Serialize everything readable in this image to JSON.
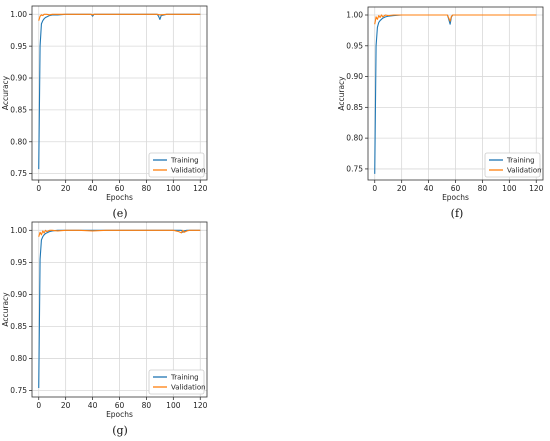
{
  "chart_data": [
    {
      "type": "line",
      "panel_label": "(e)",
      "xlabel": "Epochs",
      "ylabel": "Accuracy",
      "xlim": [
        -5,
        125
      ],
      "ylim": [
        0.74,
        1.013
      ],
      "xticks": [
        0,
        20,
        40,
        60,
        80,
        100,
        120
      ],
      "yticks": [
        0.75,
        0.8,
        0.85,
        0.9,
        0.95,
        1.0
      ],
      "ytick_labels": [
        "0.75",
        "0.80",
        "0.85",
        "0.90",
        "0.95",
        "1.00"
      ],
      "grid": true,
      "legend": "lower-right",
      "series": [
        {
          "name": "Training",
          "color": "#1f77b4",
          "x": [
            0,
            1,
            2,
            3,
            4,
            5,
            6,
            8,
            10,
            14,
            20,
            30,
            39,
            40,
            41,
            50,
            60,
            70,
            80,
            88,
            89,
            90,
            91,
            95,
            100,
            110,
            120
          ],
          "y": [
            0.757,
            0.95,
            0.985,
            0.99,
            0.993,
            0.995,
            0.996,
            0.998,
            0.999,
            0.999,
            1.0,
            1.0,
            1.0,
            0.997,
            1.0,
            1.0,
            1.0,
            1.0,
            1.0,
            1.0,
            0.997,
            0.992,
            0.998,
            1.0,
            1.0,
            1.0,
            1.0
          ]
        },
        {
          "name": "Validation",
          "color": "#ff7f0e",
          "x": [
            0,
            1,
            2,
            3,
            4,
            6,
            8,
            10,
            14,
            20,
            30,
            39,
            40,
            41,
            50,
            60,
            70,
            80,
            88,
            90,
            95,
            100,
            110,
            120
          ],
          "y": [
            0.99,
            0.997,
            0.999,
            0.998,
            1.0,
            1.0,
            0.999,
            1.0,
            1.0,
            1.0,
            1.0,
            1.0,
            0.999,
            1.0,
            1.0,
            1.0,
            1.0,
            1.0,
            1.0,
            0.999,
            1.0,
            1.0,
            1.0,
            1.0
          ]
        }
      ]
    },
    {
      "type": "line",
      "panel_label": "(f)",
      "xlabel": "Epochs",
      "ylabel": "Accuracy",
      "xlim": [
        -5,
        125
      ],
      "ylim": [
        0.732,
        1.013
      ],
      "xticks": [
        0,
        20,
        40,
        60,
        80,
        100,
        120
      ],
      "yticks": [
        0.75,
        0.8,
        0.85,
        0.9,
        0.95,
        1.0
      ],
      "ytick_labels": [
        "0.75",
        "0.80",
        "0.85",
        "0.90",
        "0.95",
        "1.00"
      ],
      "grid": true,
      "legend": "lower-right",
      "series": [
        {
          "name": "Training",
          "color": "#1f77b4",
          "x": [
            0,
            1,
            2,
            3,
            4,
            5,
            6,
            8,
            10,
            14,
            20,
            30,
            40,
            50,
            54,
            55,
            56,
            57,
            58,
            60,
            70,
            80,
            90,
            100,
            110,
            120
          ],
          "y": [
            0.742,
            0.95,
            0.98,
            0.988,
            0.991,
            0.993,
            0.995,
            0.997,
            0.998,
            0.999,
            1.0,
            1.0,
            1.0,
            1.0,
            1.0,
            0.993,
            0.985,
            0.997,
            1.0,
            1.0,
            1.0,
            1.0,
            1.0,
            1.0,
            1.0,
            1.0
          ]
        },
        {
          "name": "Validation",
          "color": "#ff7f0e",
          "x": [
            0,
            1,
            2,
            3,
            4,
            5,
            6,
            8,
            10,
            14,
            20,
            30,
            40,
            50,
            54,
            55,
            56,
            57,
            58,
            60,
            70,
            80,
            90,
            100,
            110,
            120
          ],
          "y": [
            0.985,
            0.997,
            0.993,
            0.999,
            0.996,
            1.0,
            0.997,
            1.0,
            0.999,
            1.0,
            1.0,
            1.0,
            1.0,
            1.0,
            1.0,
            0.995,
            0.99,
            0.998,
            1.0,
            1.0,
            1.0,
            1.0,
            1.0,
            1.0,
            1.0,
            1.0
          ]
        }
      ]
    },
    {
      "type": "line",
      "panel_label": "(g)",
      "xlabel": "Epochs",
      "ylabel": "Accuracy",
      "xlim": [
        -5,
        125
      ],
      "ylim": [
        0.74,
        1.013
      ],
      "xticks": [
        0,
        20,
        40,
        60,
        80,
        100,
        120
      ],
      "yticks": [
        0.75,
        0.8,
        0.85,
        0.9,
        0.95,
        1.0
      ],
      "ytick_labels": [
        "0.75",
        "0.80",
        "0.85",
        "0.90",
        "0.95",
        "1.00"
      ],
      "grid": true,
      "legend": "lower-right",
      "series": [
        {
          "name": "Training",
          "color": "#1f77b4",
          "x": [
            0,
            1,
            2,
            3,
            4,
            5,
            6,
            8,
            10,
            14,
            20,
            30,
            40,
            50,
            60,
            70,
            80,
            90,
            100,
            106,
            107,
            108,
            110,
            120
          ],
          "y": [
            0.754,
            0.955,
            0.985,
            0.99,
            0.993,
            0.995,
            0.996,
            0.998,
            0.999,
            1.0,
            1.0,
            1.0,
            1.0,
            1.0,
            1.0,
            1.0,
            1.0,
            1.0,
            1.0,
            1.0,
            0.997,
            0.999,
            1.0,
            1.0
          ]
        },
        {
          "name": "Validation",
          "color": "#ff7f0e",
          "x": [
            0,
            1,
            2,
            3,
            4,
            5,
            6,
            8,
            10,
            14,
            20,
            30,
            40,
            50,
            60,
            70,
            80,
            90,
            100,
            104,
            106,
            107,
            108,
            110,
            112,
            120
          ],
          "y": [
            0.99,
            0.997,
            0.993,
            0.999,
            0.996,
            1.0,
            0.998,
            1.0,
            1.0,
            0.999,
            1.0,
            1.0,
            0.999,
            1.0,
            1.0,
            1.0,
            1.0,
            1.0,
            1.0,
            0.998,
            0.996,
            1.0,
            0.997,
            0.999,
            1.0,
            1.0
          ]
        }
      ]
    }
  ]
}
